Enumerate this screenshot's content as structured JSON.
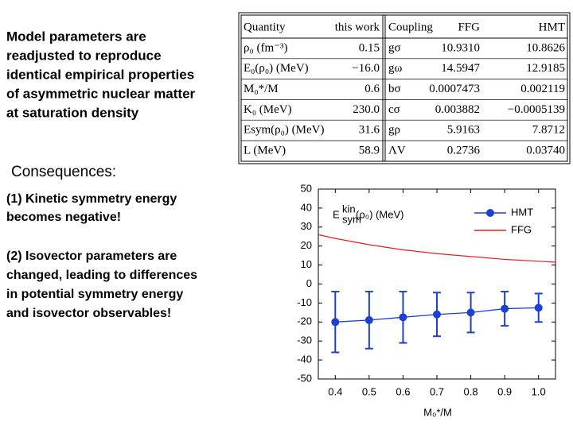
{
  "intro": [
    "Model parameters are",
    "readjusted to reproduce",
    "identical empirical properties",
    "of asymmetric nuclear matter",
    "at saturation density"
  ],
  "consequences": {
    "heading": "Consequences:",
    "point1": [
      "(1) Kinetic symmetry energy",
      "becomes negative!"
    ],
    "point2": [
      "(2) Isovector parameters are",
      "changed, leading to differences",
      "in potential symmetry energy",
      "and isovector observables!"
    ]
  },
  "table": {
    "header": [
      "Quantity",
      "this work",
      "Coupling",
      "FFG",
      "HMT"
    ],
    "rows": [
      [
        "ρ₀ (fm⁻³)",
        "0.15",
        "gσ",
        "10.9310",
        "10.8626"
      ],
      [
        "E₀(ρ₀) (MeV)",
        "−16.0",
        "gω",
        "14.5947",
        "12.9185"
      ],
      [
        "M₀*/M",
        "0.6",
        "bσ",
        "0.0007473",
        "0.002119"
      ],
      [
        "K₀ (MeV)",
        "230.0",
        "cσ",
        "0.003882",
        "−0.0005139"
      ],
      [
        "Esym(ρ₀) (MeV)",
        "31.6",
        "gρ",
        "5.9163",
        "7.8712"
      ],
      [
        "L (MeV)",
        "58.9",
        "ΛV",
        "0.2736",
        "0.03740"
      ]
    ]
  },
  "chart_data": {
    "type": "errorbar",
    "ylabel": {
      "main": "E",
      "sup": "kin",
      "sub": "sym",
      "rest": "(ρ₀) (MeV)"
    },
    "xlabel": "M₀*/M",
    "xlim": [
      0.35,
      1.05
    ],
    "xticks": [
      0.4,
      0.5,
      0.6,
      0.7,
      0.8,
      0.9,
      {
        "value": 1,
        "label": "1.0"
      }
    ],
    "ylim": [
      -50,
      50
    ],
    "yticks": [
      50,
      40,
      30,
      20,
      10,
      0,
      -10,
      -20,
      -30,
      -40,
      -50
    ],
    "legend": "upper right",
    "series": [
      {
        "name": "HMT",
        "color": "#1f3fd0",
        "x": [
          0.4,
          0.5,
          0.6,
          0.7,
          0.8,
          0.9,
          1.0
        ],
        "values": [
          -20,
          -19,
          -17.5,
          -16,
          -15,
          -13,
          -12.5
        ],
        "errors": [
          16,
          15,
          13.5,
          11.5,
          10.5,
          9,
          7.5
        ]
      },
      {
        "name": "FFG",
        "color": "#e02020",
        "x": [
          0.35,
          0.4,
          0.5,
          0.6,
          0.7,
          0.8,
          0.9,
          1.0,
          1.05
        ],
        "values": [
          26,
          24,
          20.7,
          18,
          16,
          14.5,
          13,
          12,
          11.5
        ]
      }
    ]
  }
}
